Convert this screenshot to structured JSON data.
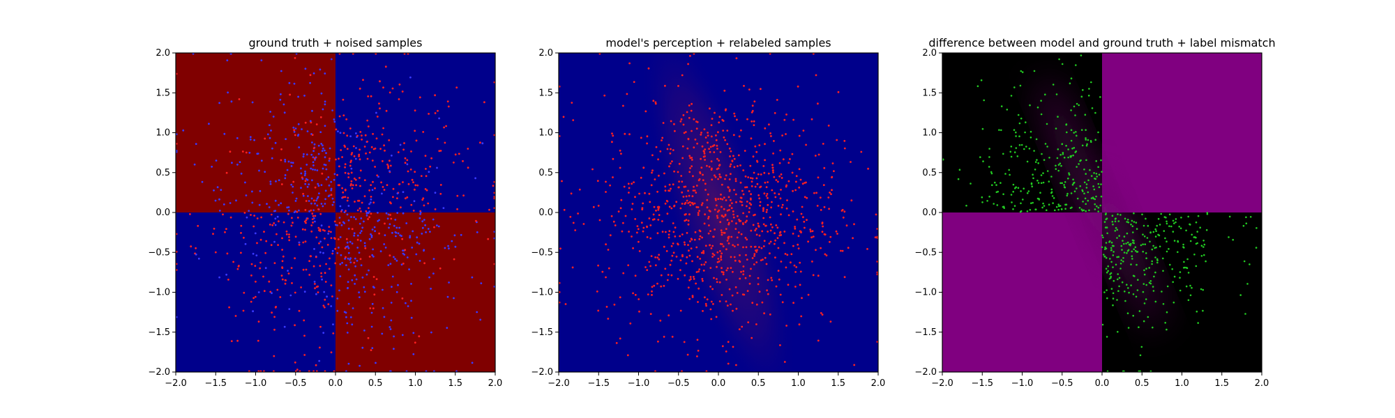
{
  "chart_data": [
    {
      "type": "heatmap",
      "title": "ground truth + noised samples",
      "xlim": [
        -2.0,
        2.0
      ],
      "ylim": [
        -2.0,
        2.0
      ],
      "xticks": [
        "−2.0",
        "−1.5",
        "−1.0",
        "−0.5",
        "0.0",
        "0.5",
        "1.0",
        "1.5",
        "2.0"
      ],
      "yticks": [
        "−2.0",
        "−1.5",
        "−1.0",
        "−0.5",
        "0.0",
        "0.5",
        "1.0",
        "1.5",
        "2.0"
      ],
      "background": "quadrants: x*y<0 dark red, x*y>0 dark blue",
      "colors": {
        "positive_class": "#800000",
        "negative_class": "#00008b",
        "point_a": "#ff2020",
        "point_b": "#3a3aff"
      },
      "samples": "~1000 scattered points in [-2,2]^2, predominantly red points over blue regions and blue points over red regions"
    },
    {
      "type": "heatmap",
      "title": "model's perception + relabeled samples",
      "xlim": [
        -2.0,
        2.0
      ],
      "ylim": [
        -2.0,
        2.0
      ],
      "xticks": [
        "−2.0",
        "−1.5",
        "−1.0",
        "−0.5",
        "0.0",
        "0.5",
        "1.0",
        "1.5",
        "2.0"
      ],
      "yticks": [
        "−2.0",
        "−1.5",
        "−1.0",
        "−0.5",
        "0.0",
        "0.5",
        "1.0",
        "1.5",
        "2.0"
      ],
      "background": "mostly dark blue with a faint reddish diagonal band from upper-left to lower-right",
      "colors": {
        "background": "#00008b",
        "band": "#6a1050",
        "point": "#ff2020"
      },
      "samples": "~1000 red points concentrated around the center band"
    },
    {
      "type": "heatmap",
      "title": "difference between model and ground truth + label mismatch",
      "xlim": [
        -2.0,
        2.0
      ],
      "ylim": [
        -2.0,
        2.0
      ],
      "xticks": [
        "−2.0",
        "−1.5",
        "−1.0",
        "−0.5",
        "0.0",
        "0.5",
        "1.0",
        "1.5",
        "2.0"
      ],
      "yticks": [
        "−2.0",
        "−1.5",
        "−1.0",
        "−0.5",
        "0.0",
        "0.5",
        "1.0",
        "1.5",
        "2.0"
      ],
      "background": "upper-left and lower-right black, upper-right and lower-left purple, blurred transition near the diagonal",
      "colors": {
        "purple": "#800080",
        "black": "#000000",
        "point": "#22cc22"
      },
      "samples": "~600 green points in upper-left and lower-right quadrants"
    }
  ]
}
